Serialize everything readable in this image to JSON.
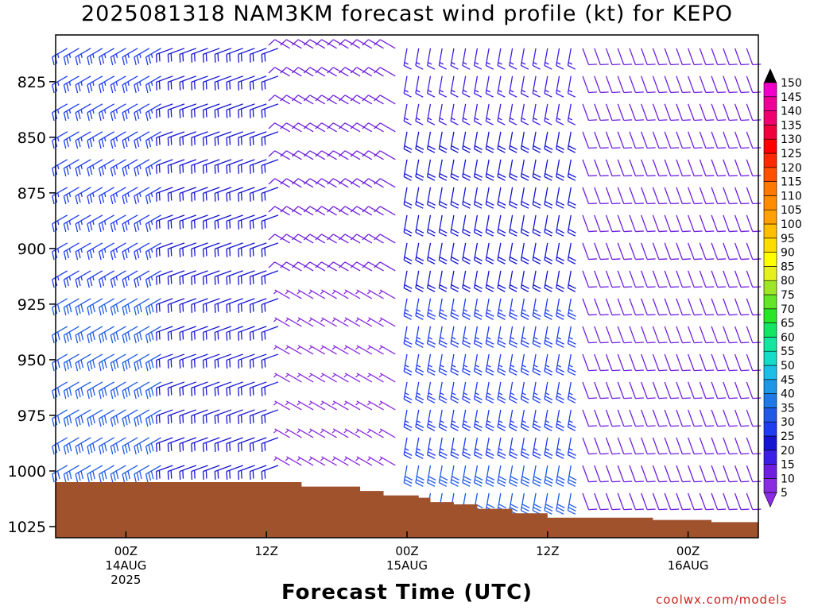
{
  "title": "2025081318 NAM3KM forecast wind profile (kt) for KEPO",
  "credit": "coolwx.com/models",
  "chart_data": {
    "type": "wind_barb_profile",
    "title": "2025081318 NAM3KM forecast wind profile (kt) for KEPO",
    "xlabel": "Forecast Time (UTC)",
    "ylabel": "",
    "y_ticks": [
      "825",
      "850",
      "875",
      "900",
      "925",
      "950",
      "975",
      "1000",
      "1025"
    ],
    "x_ticks": [
      {
        "hour": 6,
        "lines": [
          "00Z",
          "14AUG",
          "2025"
        ]
      },
      {
        "hour": 18,
        "lines": [
          "12Z"
        ]
      },
      {
        "hour": 30,
        "lines": [
          "00Z",
          "15AUG"
        ]
      },
      {
        "hour": 42,
        "lines": [
          "12Z"
        ]
      },
      {
        "hour": 54,
        "lines": [
          "00Z",
          "16AUG"
        ]
      }
    ],
    "xlim_hours": [
      0,
      60
    ],
    "ylim_hpa": [
      804,
      1030
    ],
    "colorbar": {
      "levels": [
        5,
        10,
        15,
        20,
        25,
        30,
        35,
        40,
        45,
        50,
        55,
        60,
        65,
        70,
        75,
        80,
        85,
        90,
        95,
        100,
        105,
        110,
        115,
        120,
        125,
        130,
        135,
        140,
        145,
        150
      ],
      "colors": [
        "#8a2be2",
        "#6f1ee0",
        "#3c1ee6",
        "#1414d2",
        "#1e3cf0",
        "#1e5ae6",
        "#1e78e6",
        "#1e96e6",
        "#1ebee6",
        "#14dcc8",
        "#14e6a0",
        "#14e664",
        "#28e628",
        "#64e628",
        "#a0e628",
        "#e6f01e",
        "#ffff00",
        "#ffdc00",
        "#ffbe00",
        "#ffa000",
        "#ff8c00",
        "#ff7800",
        "#ff5000",
        "#ff2800",
        "#ff0000",
        "#f0003c",
        "#f0006e",
        "#f0009b",
        "#f000c8",
        "#ff00ff"
      ]
    },
    "terrain_top_hpa": [
      {
        "hour": 0,
        "p": 1005
      },
      {
        "hour": 18,
        "p": 1005
      },
      {
        "hour": 21,
        "p": 1007
      },
      {
        "hour": 26,
        "p": 1009
      },
      {
        "hour": 28,
        "p": 1011
      },
      {
        "hour": 31,
        "p": 1012
      },
      {
        "hour": 32,
        "p": 1014
      },
      {
        "hour": 34,
        "p": 1015
      },
      {
        "hour": 36,
        "p": 1017
      },
      {
        "hour": 39,
        "p": 1019
      },
      {
        "hour": 42,
        "p": 1021
      },
      {
        "hour": 51,
        "p": 1022
      },
      {
        "hour": 56,
        "p": 1023
      },
      {
        "hour": 60,
        "p": 1023
      }
    ],
    "terrain_color": "#a0522d",
    "wind_regimes": [
      {
        "hours": [
          0,
          10
        ],
        "direction_deg": 240,
        "speed_kt_top": 25,
        "speed_kt_bottom": 30
      },
      {
        "hours": [
          10,
          20
        ],
        "direction_deg": 250,
        "speed_kt_top": 20,
        "speed_kt_bottom": 20
      },
      {
        "hours": [
          20,
          30
        ],
        "direction_deg": 300,
        "speed_kt_top": 10,
        "speed_kt_bottom": 5
      },
      {
        "hours": [
          30,
          45
        ],
        "direction_deg": 190,
        "speed_kt_top": 15,
        "speed_kt_bottom": 30
      },
      {
        "hours": [
          45,
          60
        ],
        "direction_deg": 160,
        "speed_kt_top": 10,
        "speed_kt_bottom": 10
      }
    ]
  }
}
